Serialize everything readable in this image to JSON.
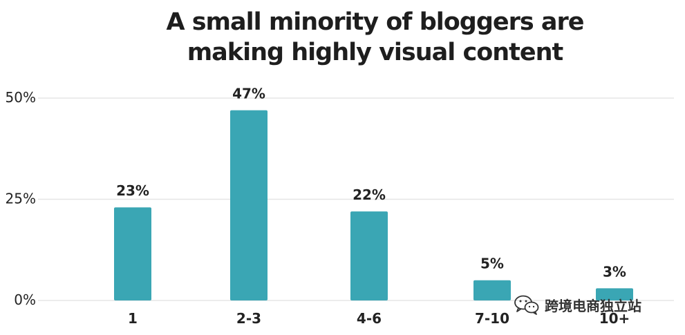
{
  "chart_data": {
    "type": "bar",
    "title": [
      "A small minority of bloggers are",
      "making highly visual content"
    ],
    "categories": [
      "1",
      "2-3",
      "4-6",
      "7-10",
      "10+"
    ],
    "values": [
      23,
      47,
      22,
      5,
      3
    ],
    "data_labels": [
      "23%",
      "47%",
      "22%",
      "5%",
      "3%"
    ],
    "y_ticks": [
      {
        "value": 0,
        "label": "0%"
      },
      {
        "value": 25,
        "label": "25%"
      },
      {
        "value": 50,
        "label": "50%"
      }
    ],
    "ylim": [
      0,
      50
    ],
    "grid": true,
    "bar_color": "#3aa6b4",
    "grid_color": "#e6e6e6"
  },
  "watermark": {
    "text": "跨境电商独立站",
    "icon": "wechat-icon"
  }
}
